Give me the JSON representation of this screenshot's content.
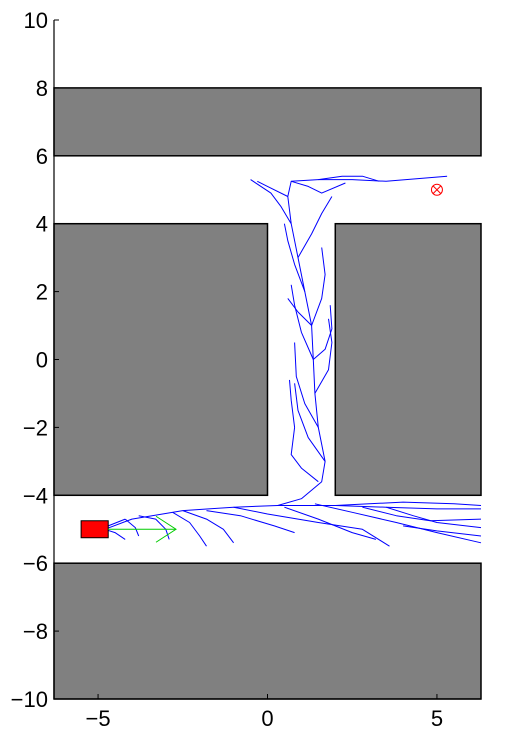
{
  "chart_data": {
    "type": "line",
    "title": "",
    "xlabel": "",
    "ylabel": "",
    "xlim": [
      -6.3,
      6.3
    ],
    "ylim": [
      -10,
      10
    ],
    "x_ticks": [
      -5,
      0,
      5
    ],
    "x_tick_labels": [
      "−5",
      "0",
      "5"
    ],
    "y_ticks": [
      10,
      8,
      6,
      4,
      2,
      0,
      -2,
      -4,
      -6,
      -8,
      -10
    ],
    "y_tick_labels": [
      "10",
      "8",
      "6",
      "4",
      "2",
      "0",
      "−2",
      "−4",
      "−6",
      "−8",
      "−10"
    ],
    "grid": false,
    "colors": {
      "obstacle": "#808080",
      "free": "#ffffff",
      "tree": "#0000ff",
      "robot": "#ff0000",
      "heading": "#00cc00",
      "goal": "#ff0000"
    },
    "obstacles": [
      {
        "x0": -6.3,
        "x1": 6.3,
        "y0": 6,
        "y1": 8
      },
      {
        "x0": -6.3,
        "x1": 0,
        "y0": -4,
        "y1": 4
      },
      {
        "x0": 2,
        "x1": 6.3,
        "y0": -4,
        "y1": 4
      },
      {
        "x0": -6.3,
        "x1": 6.3,
        "y0": -10,
        "y1": -6
      }
    ],
    "robot": {
      "x0": -5.5,
      "x1": -4.7,
      "y0": -5.25,
      "y1": -4.75
    },
    "heading_arrow": {
      "from": [
        -4.7,
        -5.0
      ],
      "to": [
        -2.7,
        -5.0
      ]
    },
    "goal": {
      "x": 5.0,
      "y": 5.0
    },
    "tree_branches": [
      [
        [
          -4.8,
          -5.0
        ],
        [
          -4.0,
          -4.7
        ],
        [
          -2.5,
          -4.45
        ],
        [
          -1.0,
          -4.35
        ],
        [
          0.3,
          -4.3
        ],
        [
          2.0,
          -4.3
        ],
        [
          3.5,
          -4.35
        ],
        [
          5.0,
          -4.4
        ],
        [
          6.3,
          -4.4
        ]
      ],
      [
        [
          0.3,
          -4.3
        ],
        [
          1.0,
          -4.1
        ],
        [
          1.6,
          -3.6
        ],
        [
          1.7,
          -3.0
        ],
        [
          1.5,
          -2.0
        ],
        [
          1.4,
          -1.0
        ],
        [
          1.35,
          0.0
        ],
        [
          1.3,
          1.0
        ],
        [
          1.1,
          2.0
        ],
        [
          0.9,
          3.0
        ],
        [
          0.7,
          4.0
        ],
        [
          0.6,
          4.8
        ],
        [
          0.7,
          5.25
        ],
        [
          1.5,
          5.3
        ],
        [
          2.5,
          5.3
        ],
        [
          3.5,
          5.25
        ],
        [
          5.3,
          5.4
        ]
      ],
      [
        [
          1.4,
          -4.25
        ],
        [
          2.5,
          -4.5
        ],
        [
          3.8,
          -4.8
        ],
        [
          5.0,
          -5.1
        ],
        [
          6.3,
          -5.4
        ]
      ],
      [
        [
          0.5,
          -4.35
        ],
        [
          1.5,
          -4.7
        ],
        [
          2.5,
          -5.1
        ],
        [
          3.2,
          -5.3
        ]
      ],
      [
        [
          -1.0,
          -4.35
        ],
        [
          0.0,
          -4.55
        ],
        [
          1.5,
          -4.8
        ],
        [
          2.8,
          -5.0
        ],
        [
          3.6,
          -5.5
        ]
      ],
      [
        [
          -2.5,
          -4.45
        ],
        [
          -1.8,
          -4.7
        ],
        [
          -1.3,
          -5.0
        ],
        [
          -1.0,
          -5.4
        ]
      ],
      [
        [
          -3.8,
          -4.6
        ],
        [
          -3.3,
          -4.7
        ],
        [
          -3.0,
          -5.0
        ],
        [
          -2.9,
          -5.3
        ]
      ],
      [
        [
          -4.2,
          -4.7
        ],
        [
          -3.9,
          -4.95
        ],
        [
          -3.8,
          -5.2
        ]
      ],
      [
        [
          -2.8,
          -4.5
        ],
        [
          -2.3,
          -4.8
        ],
        [
          -2.0,
          -5.2
        ],
        [
          -1.8,
          -5.5
        ]
      ],
      [
        [
          -1.8,
          -4.45
        ],
        [
          -0.8,
          -4.6
        ],
        [
          0.2,
          -4.9
        ],
        [
          0.8,
          -5.1
        ]
      ],
      [
        [
          2.0,
          -4.3
        ],
        [
          3.0,
          -4.25
        ],
        [
          4.0,
          -4.2
        ],
        [
          5.5,
          -4.25
        ],
        [
          6.3,
          -4.3
        ]
      ],
      [
        [
          2.8,
          -4.35
        ],
        [
          3.8,
          -4.6
        ],
        [
          4.8,
          -4.75
        ],
        [
          6.3,
          -4.7
        ]
      ],
      [
        [
          4.0,
          -4.9
        ],
        [
          5.0,
          -5.05
        ],
        [
          6.3,
          -5.2
        ]
      ],
      [
        [
          3.5,
          -4.35
        ],
        [
          4.3,
          -4.6
        ],
        [
          5.0,
          -4.8
        ],
        [
          6.3,
          -4.95
        ]
      ],
      [
        [
          -4.2,
          -4.7
        ],
        [
          -4.7,
          -4.9
        ],
        [
          -4.8,
          -5.0
        ],
        [
          -4.5,
          -5.1
        ],
        [
          -4.2,
          -5.3
        ]
      ],
      [
        [
          1.5,
          -3.6
        ],
        [
          1.0,
          -3.2
        ],
        [
          0.7,
          -2.8
        ],
        [
          0.8,
          -2.0
        ]
      ],
      [
        [
          1.7,
          -3.0
        ],
        [
          1.2,
          -2.3
        ],
        [
          0.9,
          -1.5
        ],
        [
          0.8,
          -0.7
        ]
      ],
      [
        [
          1.5,
          -2.0
        ],
        [
          1.1,
          -1.3
        ],
        [
          0.85,
          -0.5
        ],
        [
          0.8,
          0.5
        ]
      ],
      [
        [
          1.35,
          0.0
        ],
        [
          1.0,
          0.8
        ],
        [
          0.8,
          1.6
        ],
        [
          0.7,
          2.2
        ]
      ],
      [
        [
          1.3,
          1.0
        ],
        [
          1.6,
          1.8
        ],
        [
          1.7,
          2.5
        ],
        [
          1.6,
          3.3
        ]
      ],
      [
        [
          1.1,
          2.0
        ],
        [
          0.8,
          2.8
        ],
        [
          0.6,
          3.5
        ],
        [
          0.5,
          4.0
        ]
      ],
      [
        [
          0.9,
          3.0
        ],
        [
          1.3,
          3.7
        ],
        [
          1.6,
          4.3
        ],
        [
          1.9,
          4.8
        ]
      ],
      [
        [
          0.7,
          4.0
        ],
        [
          0.4,
          4.5
        ],
        [
          0.1,
          4.9
        ],
        [
          -0.5,
          5.3
        ]
      ],
      [
        [
          0.6,
          4.8
        ],
        [
          0.0,
          5.1
        ],
        [
          -0.3,
          5.25
        ]
      ],
      [
        [
          0.7,
          5.25
        ],
        [
          1.2,
          5.1
        ],
        [
          1.6,
          4.9
        ],
        [
          2.3,
          5.2
        ]
      ],
      [
        [
          1.5,
          5.3
        ],
        [
          2.2,
          5.4
        ],
        [
          2.8,
          5.4
        ],
        [
          3.3,
          5.25
        ]
      ],
      [
        [
          1.4,
          -1.0
        ],
        [
          1.8,
          -0.3
        ],
        [
          1.9,
          0.5
        ],
        [
          1.8,
          1.2
        ]
      ],
      [
        [
          1.35,
          0.0
        ],
        [
          1.7,
          0.3
        ],
        [
          1.9,
          0.9
        ],
        [
          1.85,
          1.6
        ]
      ],
      [
        [
          0.8,
          -2.0
        ],
        [
          0.7,
          -1.2
        ],
        [
          0.65,
          -0.6
        ]
      ],
      [
        [
          1.3,
          1.0
        ],
        [
          0.9,
          1.4
        ],
        [
          0.6,
          1.8
        ]
      ]
    ]
  }
}
